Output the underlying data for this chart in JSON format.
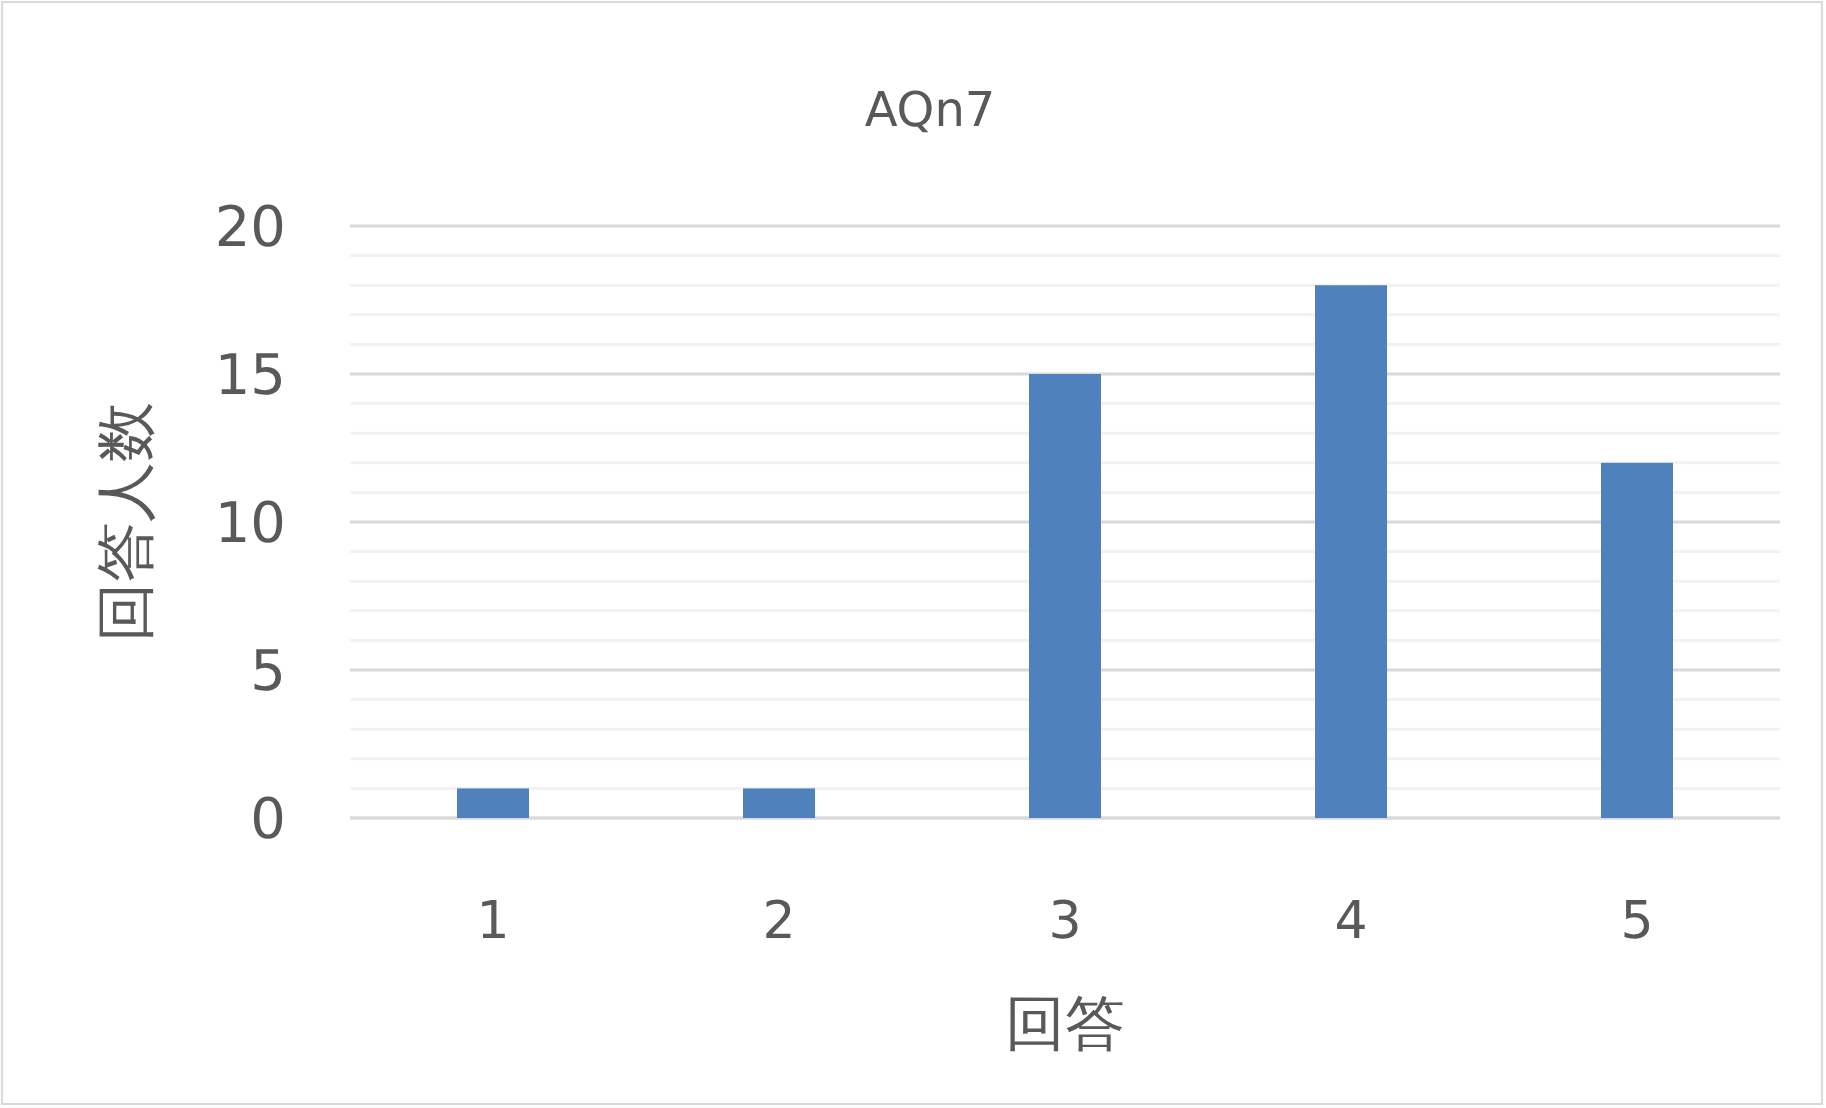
{
  "chart_data": {
    "type": "bar",
    "title": "AQn7",
    "xlabel": "回答",
    "ylabel": "回答人数",
    "categories": [
      "1",
      "2",
      "3",
      "4",
      "5"
    ],
    "series": [
      {
        "color": "#4f81bd",
        "values": [
          1,
          1,
          15,
          18,
          12
        ]
      }
    ],
    "ylim": [
      0,
      20
    ],
    "yticks": [
      0,
      {
        "value": 1,
        "label": null
      },
      {
        "value": 2,
        "label": null
      },
      {
        "value": 3,
        "label": null
      },
      {
        "value": 4,
        "label": null
      },
      5,
      {
        "value": 6,
        "label": null
      },
      {
        "value": 7,
        "label": null
      },
      {
        "value": 8,
        "label": null
      },
      {
        "value": 9,
        "label": null
      },
      10,
      {
        "value": 11,
        "label": null
      },
      {
        "value": 12,
        "label": null
      },
      {
        "value": 13,
        "label": null
      },
      {
        "value": 14,
        "label": null
      },
      15,
      {
        "value": 16,
        "label": null
      },
      {
        "value": 17,
        "label": null
      },
      {
        "value": 18,
        "label": null
      },
      {
        "value": 19,
        "label": null
      },
      20
    ],
    "grid": "y"
  }
}
